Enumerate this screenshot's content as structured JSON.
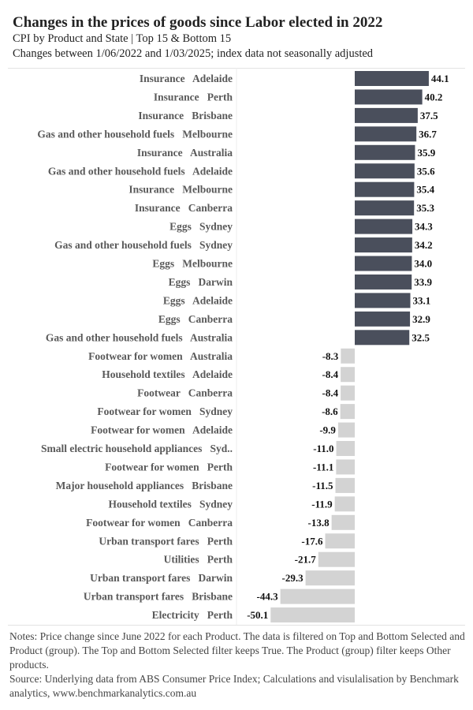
{
  "header": {
    "title": "Changes in the prices of goods since Labor elected in 2022",
    "subtitle": "CPI by Product and State | Top 15 & Bottom 15",
    "subtitle2": "Changes between 1/06/2022 and 1/03/2025; index data not seasonally adjusted"
  },
  "colors": {
    "positive": "#4a4f5c",
    "negative": "#d3d3d3"
  },
  "chart_data": {
    "type": "bar",
    "orientation": "horizontal",
    "title": "Changes in the prices of goods since Labor elected in 2022",
    "xlabel": "",
    "ylabel": "",
    "xlim": [
      -52,
      46
    ],
    "grid": false,
    "categories": [
      "Insurance   Adelaide",
      "Insurance   Perth",
      "Insurance   Brisbane",
      "Gas and other household fuels   Melbourne",
      "Insurance   Australia",
      "Gas and other household fuels   Adelaide",
      "Insurance   Melbourne",
      "Insurance   Canberra",
      "Eggs   Sydney",
      "Gas and other household fuels   Sydney",
      "Eggs   Melbourne",
      "Eggs   Darwin",
      "Eggs   Adelaide",
      "Eggs   Canberra",
      "Gas and other household fuels   Australia",
      "Footwear for women   Australia",
      "Household textiles   Adelaide",
      "Footwear   Canberra",
      "Footwear for women   Sydney",
      "Footwear for women   Adelaide",
      "Small electric household appliances   Syd..",
      "Footwear for women   Perth",
      "Major household appliances   Brisbane",
      "Household textiles   Sydney",
      "Footwear for women   Canberra",
      "Urban transport fares   Perth",
      "Utilities   Perth",
      "Urban transport fares   Darwin",
      "Urban transport fares   Brisbane",
      "Electricity   Perth"
    ],
    "values": [
      44.1,
      40.2,
      37.5,
      36.7,
      35.9,
      35.6,
      35.4,
      35.3,
      34.3,
      34.2,
      34.0,
      33.9,
      33.1,
      32.9,
      32.5,
      -8.3,
      -8.4,
      -8.4,
      -8.6,
      -9.9,
      -11.0,
      -11.1,
      -11.5,
      -11.9,
      -13.8,
      -17.6,
      -21.7,
      -29.3,
      -44.3,
      -50.1
    ],
    "value_labels": [
      "44.1",
      "40.2",
      "37.5",
      "36.7",
      "35.9",
      "35.6",
      "35.4",
      "35.3",
      "34.3",
      "34.2",
      "34.0",
      "33.9",
      "33.1",
      "32.9",
      "32.5",
      "-8.3",
      "-8.4",
      "-8.4",
      "-8.6",
      "-9.9",
      "-11.0",
      "-11.1",
      "-11.5",
      "-11.9",
      "-13.8",
      "-17.6",
      "-21.7",
      "-29.3",
      "-44.3",
      "-50.1"
    ]
  },
  "notes": {
    "line1": "Notes: Price change since June 2022 for each Product. The data is filtered on Top and Bottom Selected and Product (group). The Top and Bottom Selected filter keeps True. The Product (group) filter keeps Other products.",
    "line2": "Source: Underlying data from ABS Consumer Price Index; Calculations and visulalisation by Benchmark analytics, www.benchmarkanalytics.com.au"
  }
}
